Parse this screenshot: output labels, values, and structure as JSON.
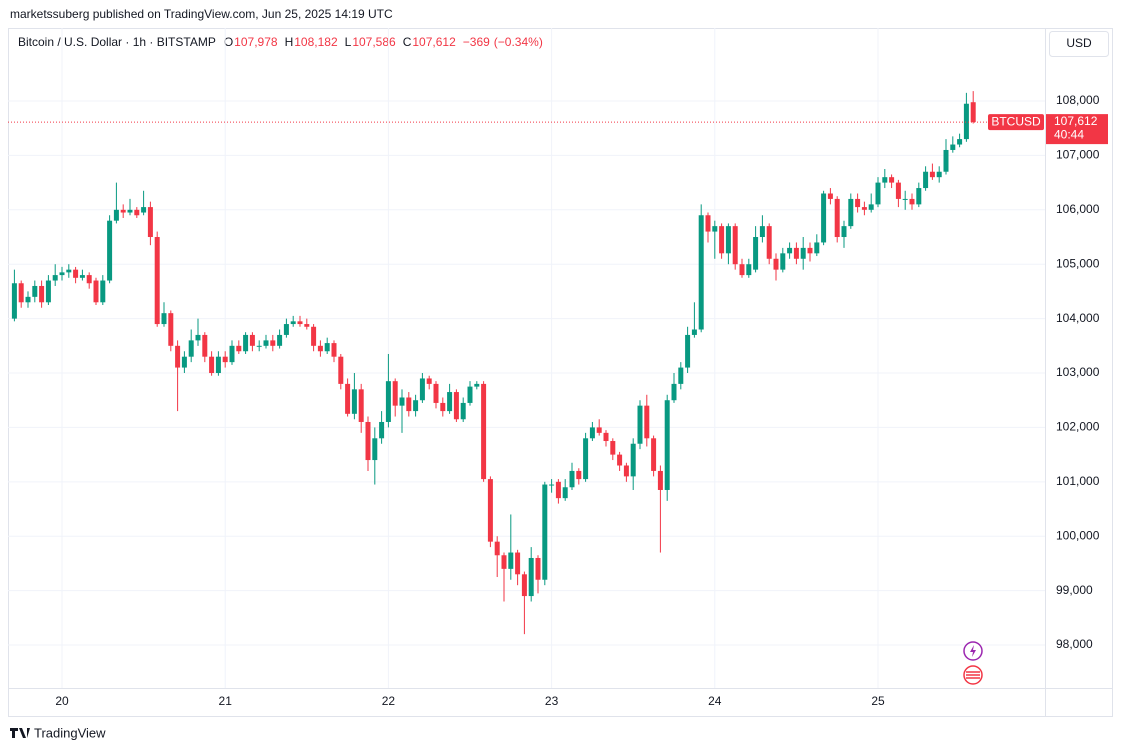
{
  "header": {
    "published": "marketssuberg published on TradingView.com, Jun 25, 2025 14:19 UTC",
    "footer": "TradingView"
  },
  "chart_data": {
    "type": "candlestick",
    "symbol": "Bitcoin / U.S. Dollar · 1h · BITSTAMP",
    "ohlc": [
      {
        "key": "O",
        "value": 107978,
        "label": "107,978"
      },
      {
        "key": "H",
        "value": 108182,
        "label": "108,182"
      },
      {
        "key": "L",
        "value": 107586,
        "label": "107,586"
      },
      {
        "key": "C",
        "value": 107612,
        "label": "107,612"
      }
    ],
    "change": {
      "value": -369,
      "label": "−369"
    },
    "change_pct": {
      "value": -0.34,
      "label": "(−0.34%)"
    },
    "currency": "USD",
    "price_label": {
      "name": "BTCUSD",
      "value": 107612,
      "label": "107,612",
      "countdown": "40:44"
    },
    "up_color": "#089981",
    "down_color": "#f23645",
    "categories": [
      null,
      null,
      null,
      null,
      null,
      null,
      null,
      "20",
      null,
      null,
      null,
      null,
      null,
      null,
      null,
      null,
      null,
      null,
      null,
      null,
      null,
      null,
      null,
      null,
      null,
      null,
      null,
      null,
      null,
      null,
      null,
      "21",
      null,
      null,
      null,
      null,
      null,
      null,
      null,
      null,
      null,
      null,
      null,
      null,
      null,
      null,
      null,
      null,
      null,
      null,
      null,
      null,
      null,
      null,
      null,
      "22",
      null,
      null,
      null,
      null,
      null,
      null,
      null,
      null,
      null,
      null,
      null,
      null,
      null,
      null,
      null,
      null,
      null,
      null,
      null,
      null,
      null,
      null,
      null,
      "23",
      null,
      null,
      null,
      null,
      null,
      null,
      null,
      null,
      null,
      null,
      null,
      null,
      null,
      null,
      null,
      null,
      null,
      null,
      null,
      null,
      null,
      null,
      null,
      "24",
      null,
      null,
      null,
      null,
      null,
      null,
      null,
      null,
      null,
      null,
      null,
      null,
      null,
      null,
      null,
      null,
      null,
      null,
      null,
      null,
      null,
      null,
      null,
      "25",
      null,
      null,
      null,
      null,
      null,
      null,
      null,
      null,
      null,
      null,
      null,
      null,
      null,
      null
    ],
    "open": [
      104000,
      104650,
      104300,
      104400,
      104600,
      104300,
      104700,
      104800,
      104850,
      104900,
      104750,
      104800,
      104700,
      104300,
      104700,
      105800,
      106000,
      105950,
      106000,
      105950,
      106050,
      105500,
      103900,
      104100,
      103500,
      103100,
      103300,
      103600,
      103700,
      103300,
      103000,
      103300,
      103200,
      103500,
      103400,
      103700,
      103500,
      103500,
      103600,
      103500,
      103700,
      103900,
      103950,
      103900,
      103850,
      103500,
      103400,
      103550,
      103300,
      102800,
      102250,
      102700,
      102100,
      101400,
      101800,
      102100,
      102850,
      102400,
      102550,
      102300,
      102500,
      102900,
      102800,
      102450,
      102300,
      102650,
      102150,
      102450,
      102750,
      102800,
      101050,
      99900,
      99650,
      99400,
      99700,
      99300,
      98900,
      99600,
      99200,
      100950,
      101000,
      100700,
      100900,
      101200,
      101050,
      101800,
      102000,
      101900,
      101750,
      101500,
      101300,
      101100,
      101700,
      102400,
      101800,
      101200,
      100850,
      102500,
      102800,
      103100,
      103700,
      103800,
      105900,
      105600,
      105700,
      105200,
      105700,
      105000,
      104800,
      104900,
      105500,
      105700,
      105100,
      104900,
      105200,
      105300,
      105100,
      105300,
      105200,
      105400,
      106300,
      106200,
      105500,
      105700,
      106200,
      106050,
      106000,
      106100,
      106500,
      106600,
      106500,
      106200,
      106200,
      106100,
      106400,
      106700,
      106600,
      106700,
      107100,
      107200,
      107300,
      107978
    ],
    "high": [
      104900,
      104700,
      104500,
      104700,
      104700,
      104800,
      105000,
      104950,
      105000,
      104950,
      104900,
      104850,
      104750,
      104800,
      105900,
      106500,
      106100,
      106200,
      106050,
      106350,
      106150,
      105600,
      104300,
      104150,
      103600,
      103400,
      103800,
      104000,
      103750,
      103400,
      103400,
      103400,
      103600,
      103600,
      103750,
      103750,
      103600,
      103700,
      103700,
      103800,
      104000,
      104050,
      104050,
      104000,
      103900,
      103600,
      103650,
      103600,
      103350,
      102900,
      103000,
      102800,
      102200,
      102000,
      102300,
      103350,
      102900,
      102700,
      102650,
      102600,
      103000,
      102950,
      102850,
      102550,
      102800,
      102700,
      102550,
      102850,
      102850,
      102850,
      101100,
      100000,
      99700,
      100400,
      99750,
      99350,
      99800,
      99650,
      101000,
      101050,
      101050,
      101050,
      101350,
      101250,
      101900,
      102100,
      102150,
      101950,
      101800,
      101550,
      101350,
      101800,
      102500,
      102600,
      101850,
      101300,
      102600,
      103000,
      103200,
      103850,
      104300,
      106100,
      105950,
      105800,
      105750,
      105750,
      105750,
      105100,
      105100,
      105700,
      105900,
      105750,
      105200,
      105300,
      105400,
      105400,
      105500,
      105400,
      105550,
      106350,
      106400,
      106250,
      105800,
      106300,
      106300,
      106150,
      106300,
      106600,
      106750,
      106650,
      106550,
      106350,
      106300,
      106500,
      106800,
      106850,
      106800,
      107300,
      107350,
      107400,
      108150,
      108182
    ],
    "low": [
      103950,
      104200,
      104200,
      104300,
      104200,
      104250,
      104600,
      104700,
      104750,
      104650,
      104700,
      104550,
      104250,
      104250,
      104650,
      105750,
      105850,
      105900,
      105850,
      105900,
      105350,
      103850,
      103850,
      103400,
      102300,
      103000,
      103200,
      103500,
      103200,
      102950,
      102950,
      103100,
      103150,
      103350,
      103350,
      103400,
      103400,
      103450,
      103400,
      103450,
      103650,
      103850,
      103850,
      103800,
      103400,
      103300,
      103350,
      103200,
      102700,
      102200,
      102150,
      101900,
      101200,
      100950,
      101700,
      102000,
      102200,
      101900,
      102200,
      102200,
      102450,
      102700,
      102350,
      102200,
      102250,
      102100,
      102100,
      102400,
      102700,
      101000,
      99800,
      99250,
      98800,
      99200,
      99100,
      98200,
      98800,
      98950,
      99100,
      100800,
      100600,
      100650,
      100850,
      100950,
      101000,
      101750,
      101850,
      101650,
      101400,
      101200,
      101000,
      100850,
      101600,
      101650,
      101100,
      99700,
      100650,
      102450,
      102700,
      103000,
      103650,
      103750,
      105400,
      105100,
      105100,
      105000,
      104900,
      104750,
      104750,
      104850,
      105400,
      105000,
      104700,
      104850,
      105100,
      105000,
      104900,
      105050,
      105150,
      105350,
      106100,
      105400,
      105300,
      105650,
      105950,
      105900,
      105950,
      106050,
      106400,
      106400,
      106050,
      106000,
      106000,
      106050,
      106350,
      106550,
      106500,
      106650,
      107050,
      107150,
      107250,
      107586
    ],
    "close": [
      104650,
      104300,
      104400,
      104600,
      104300,
      104700,
      104800,
      104850,
      104900,
      104750,
      104800,
      104650,
      104300,
      104700,
      105800,
      106000,
      105950,
      106000,
      105900,
      106050,
      105500,
      103900,
      104100,
      103500,
      103100,
      103300,
      103600,
      103700,
      103300,
      103000,
      103300,
      103200,
      103500,
      103400,
      103700,
      103500,
      103500,
      103600,
      103500,
      103700,
      103900,
      103950,
      103900,
      103850,
      103500,
      103400,
      103550,
      103300,
      102800,
      102250,
      102700,
      102100,
      101400,
      101800,
      102100,
      102850,
      102400,
      102550,
      102300,
      102500,
      102900,
      102800,
      102450,
      102300,
      102650,
      102150,
      102450,
      102750,
      102800,
      101050,
      99900,
      99650,
      99400,
      99700,
      99300,
      98900,
      99600,
      99200,
      100950,
      100950,
      100700,
      100900,
      101200,
      101050,
      101800,
      102000,
      101900,
      101750,
      101500,
      101300,
      101100,
      101700,
      102400,
      101800,
      101200,
      100850,
      102500,
      102800,
      103100,
      103700,
      103800,
      105900,
      105600,
      105700,
      105200,
      105700,
      105000,
      104800,
      105000,
      105500,
      105700,
      105100,
      104900,
      105200,
      105300,
      105100,
      105300,
      105200,
      105400,
      106300,
      106200,
      105500,
      105700,
      106200,
      106050,
      106000,
      106100,
      106500,
      106600,
      106500,
      106200,
      106200,
      106100,
      106400,
      106700,
      106600,
      106700,
      107100,
      107200,
      107300,
      107950,
      107612
    ],
    "ylim": [
      97210,
      109342
    ],
    "yticks": [
      {
        "value": 98000,
        "label": "98,000"
      },
      {
        "value": 99000,
        "label": "99,000"
      },
      {
        "value": 100000,
        "label": "100,000"
      },
      {
        "value": 101000,
        "label": "101,000"
      },
      {
        "value": 102000,
        "label": "102,000"
      },
      {
        "value": 103000,
        "label": "103,000"
      },
      {
        "value": 104000,
        "label": "104,000"
      },
      {
        "value": 105000,
        "label": "105,000"
      },
      {
        "value": 106000,
        "label": "106,000"
      },
      {
        "value": 107000,
        "label": "107,000"
      },
      {
        "value": 108000,
        "label": "108,000"
      }
    ],
    "grid": true
  }
}
